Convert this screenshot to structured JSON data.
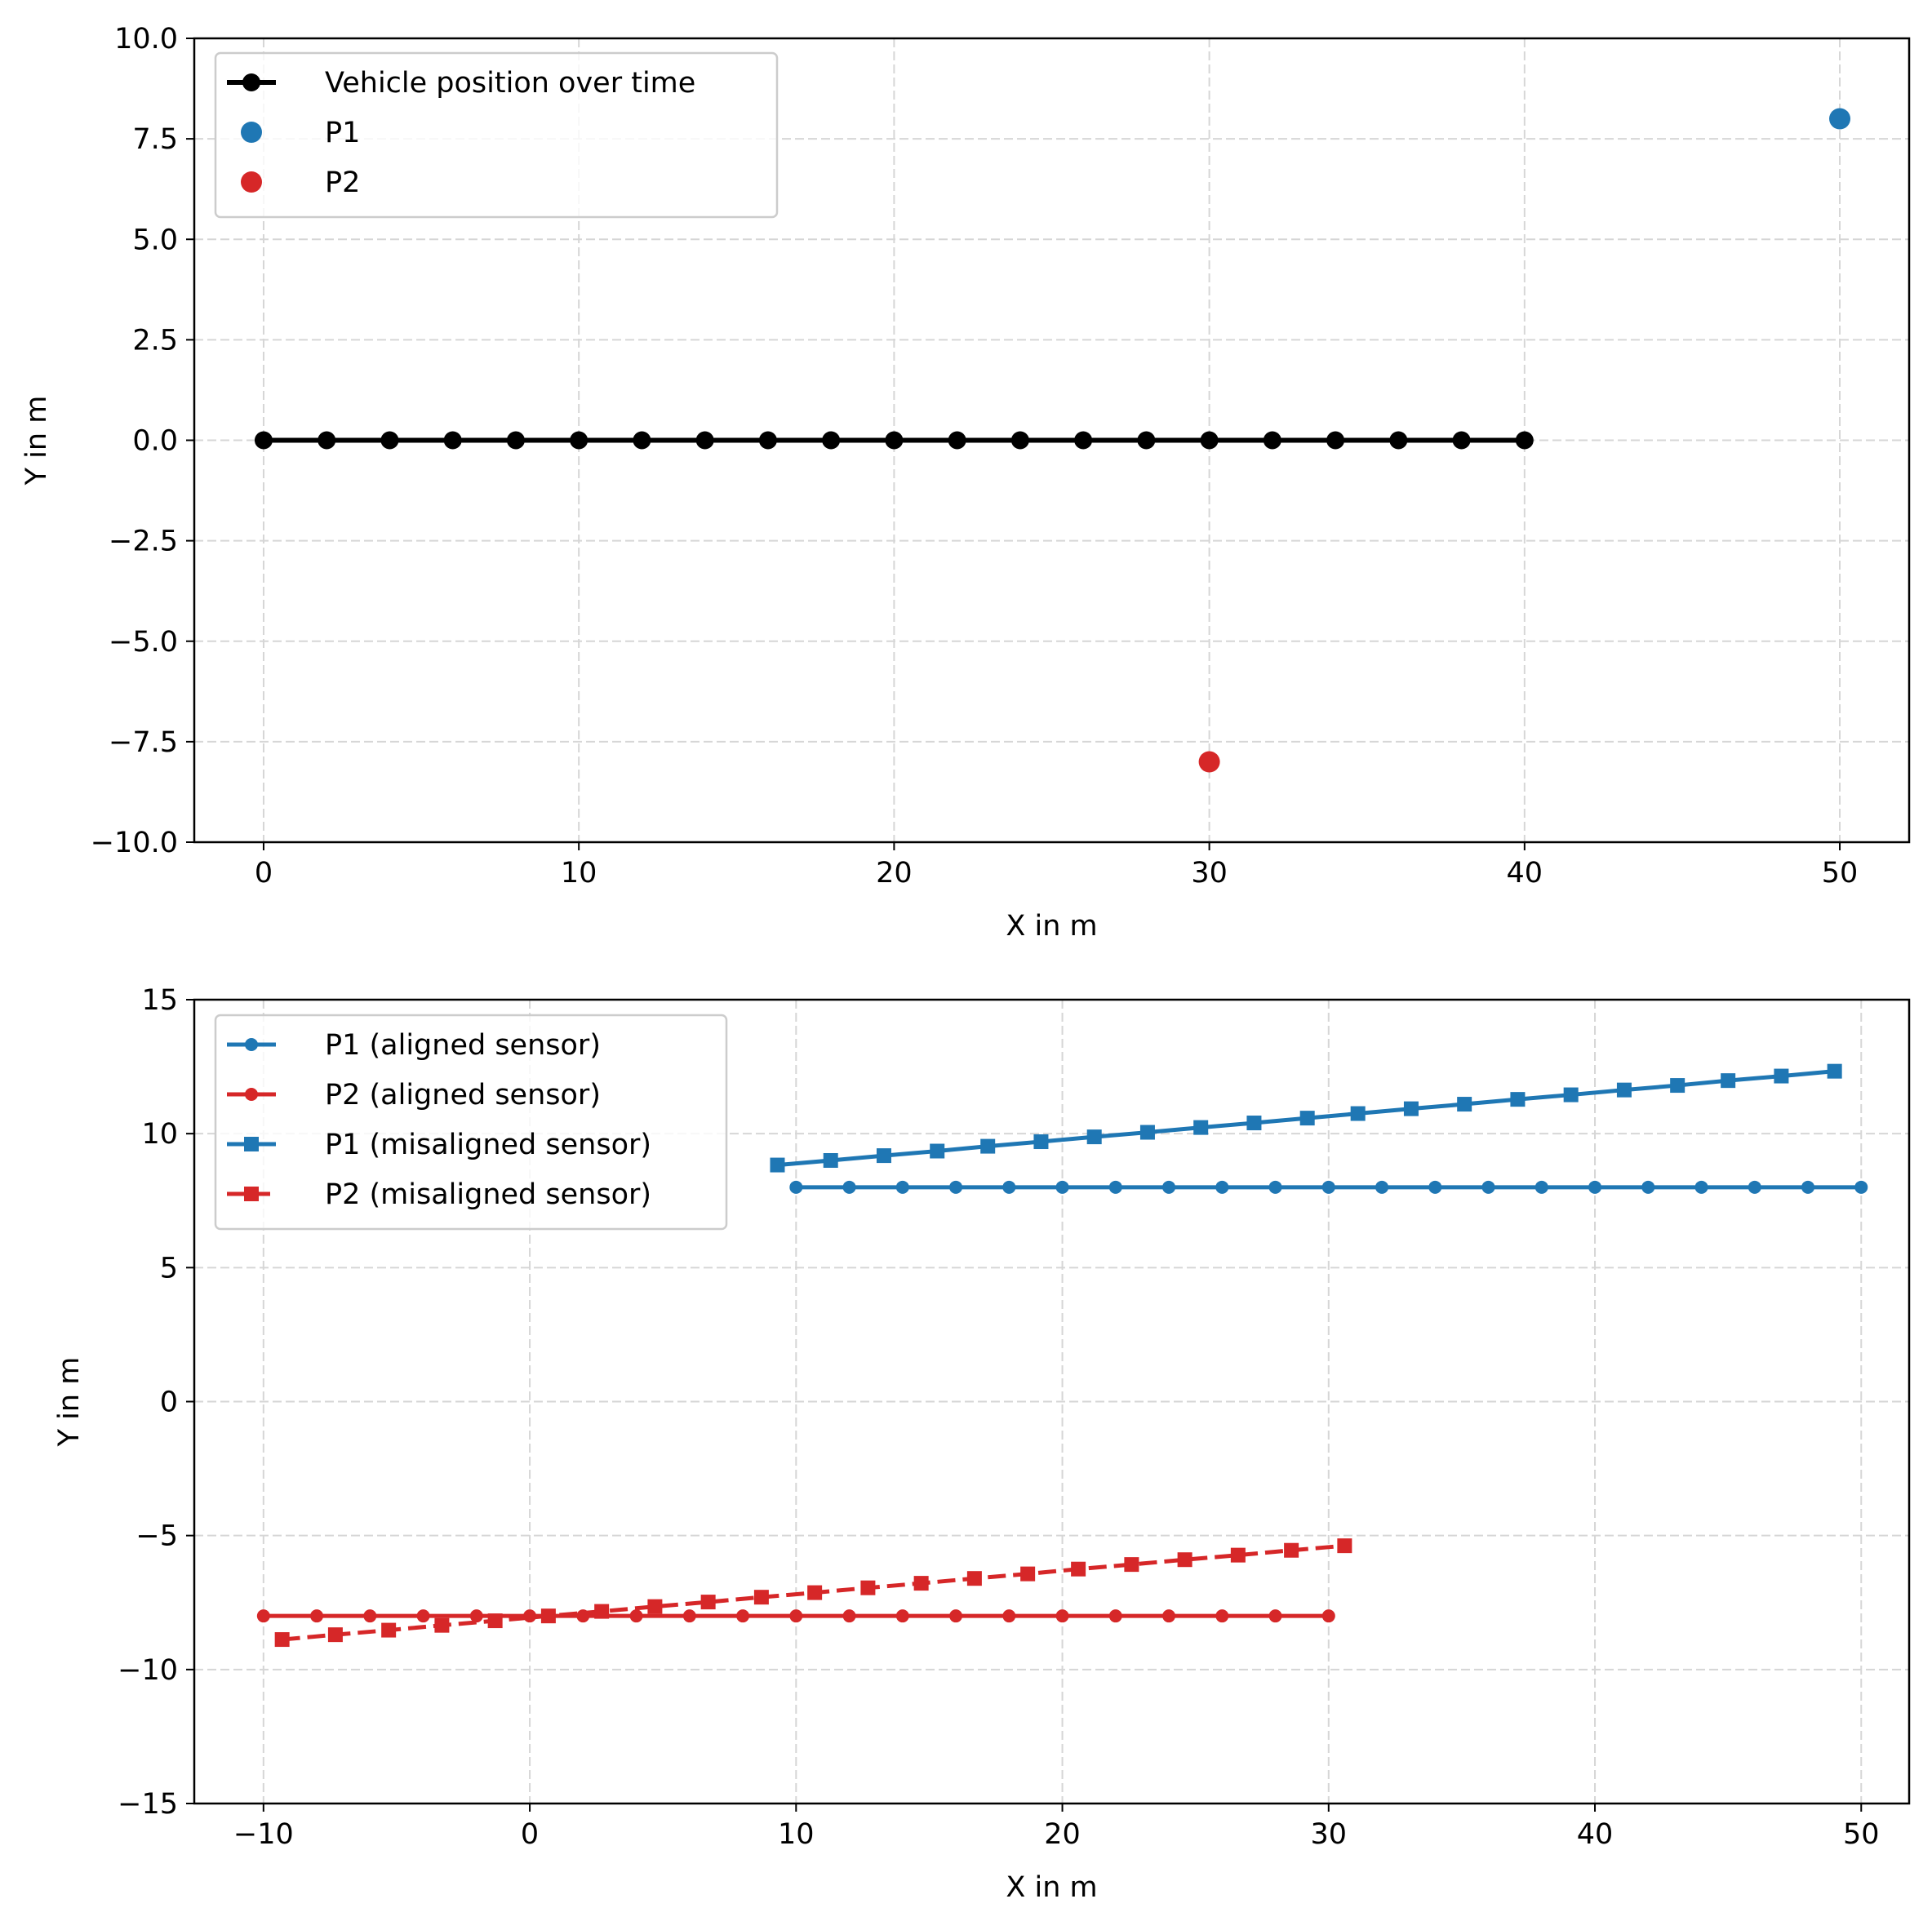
{
  "chart_data": [
    {
      "type": "scatter",
      "xlabel": "X in m",
      "ylabel": "Y in m",
      "xlim": [
        -2.2,
        52.2
      ],
      "ylim": [
        -10,
        10
      ],
      "xticks": [
        0,
        10,
        20,
        30,
        40,
        50
      ],
      "yticks": [
        -10,
        -7.5,
        -5,
        -2.5,
        0,
        2.5,
        5,
        7.5,
        10
      ],
      "xtick_labels": [
        "0",
        "10",
        "20",
        "30",
        "40",
        "50"
      ],
      "ytick_labels": [
        "−10.0",
        "−7.5",
        "−5.0",
        "−2.5",
        "0.0",
        "2.5",
        "5.0",
        "7.5",
        "10.0"
      ],
      "grid": true,
      "legend_position": "upper-left",
      "series": [
        {
          "name": "Vehicle position over time",
          "color": "#000000",
          "line": "solid",
          "marker": "circle",
          "marker_size": 11,
          "x": [
            0,
            2,
            4,
            6,
            8,
            10,
            12,
            14,
            16,
            18,
            20,
            22,
            24,
            26,
            28,
            30,
            32,
            34,
            36,
            38,
            40
          ],
          "y": [
            0,
            0,
            0,
            0,
            0,
            0,
            0,
            0,
            0,
            0,
            0,
            0,
            0,
            0,
            0,
            0,
            0,
            0,
            0,
            0,
            0
          ]
        },
        {
          "name": "P1",
          "color": "#1f77b4",
          "line": "none",
          "marker": "circle",
          "marker_size": 13,
          "x": [
            50
          ],
          "y": [
            8
          ]
        },
        {
          "name": "P2",
          "color": "#d62728",
          "line": "none",
          "marker": "circle",
          "marker_size": 13,
          "x": [
            30
          ],
          "y": [
            -8
          ]
        }
      ]
    },
    {
      "type": "line",
      "xlabel": "X in m",
      "ylabel": "Y in m",
      "xlim": [
        -12.6,
        51.8
      ],
      "ylim": [
        -15,
        15
      ],
      "xticks": [
        -10,
        0,
        10,
        20,
        30,
        40,
        50
      ],
      "yticks": [
        -15,
        -10,
        -5,
        0,
        5,
        10,
        15
      ],
      "xtick_labels": [
        "−10",
        "0",
        "10",
        "20",
        "30",
        "40",
        "50"
      ],
      "ytick_labels": [
        "−15",
        "−10",
        "−5",
        "0",
        "5",
        "10",
        "15"
      ],
      "grid": true,
      "legend_position": "upper-left",
      "series": [
        {
          "name": "P1 (aligned sensor)",
          "color": "#1f77b4",
          "line": "solid",
          "marker": "circle",
          "marker_size": 8,
          "x": [
            10,
            12,
            14,
            16,
            18,
            20,
            22,
            24,
            26,
            28,
            30,
            32,
            34,
            36,
            38,
            40,
            42,
            44,
            46,
            48,
            50
          ],
          "y": [
            8,
            8,
            8,
            8,
            8,
            8,
            8,
            8,
            8,
            8,
            8,
            8,
            8,
            8,
            8,
            8,
            8,
            8,
            8,
            8,
            8
          ]
        },
        {
          "name": "P2 (aligned sensor)",
          "color": "#d62728",
          "line": "solid",
          "marker": "circle",
          "marker_size": 8,
          "x": [
            -10,
            -8,
            -6,
            -4,
            -2,
            0,
            2,
            4,
            6,
            8,
            10,
            12,
            14,
            16,
            18,
            20,
            22,
            24,
            26,
            28,
            30
          ],
          "y": [
            -8,
            -8,
            -8,
            -8,
            -8,
            -8,
            -8,
            -8,
            -8,
            -8,
            -8,
            -8,
            -8,
            -8,
            -8,
            -8,
            -8,
            -8,
            -8,
            -8,
            -8
          ]
        },
        {
          "name": "P1 (misaligned sensor)",
          "color": "#1f77b4",
          "line": "solid",
          "marker": "square",
          "marker_size": 9,
          "x": [
            9.3,
            11.3,
            13.3,
            15.3,
            17.2,
            19.2,
            21.2,
            23.2,
            25.2,
            27.2,
            29.2,
            31.1,
            33.1,
            35.1,
            37.1,
            39.1,
            41.1,
            43.1,
            45.0,
            47.0,
            49.0
          ],
          "y": [
            8.83,
            9.0,
            9.18,
            9.35,
            9.53,
            9.7,
            9.88,
            10.05,
            10.23,
            10.4,
            10.58,
            10.75,
            10.93,
            11.1,
            11.28,
            11.45,
            11.63,
            11.8,
            11.98,
            12.15,
            12.33
          ]
        },
        {
          "name": "P2 (misaligned sensor)",
          "color": "#d62728",
          "line": "dashed",
          "marker": "square",
          "marker_size": 9,
          "x": [
            -9.3,
            -7.3,
            -5.3,
            -3.3,
            -1.3,
            0.7,
            2.7,
            4.7,
            6.7,
            8.7,
            10.7,
            12.7,
            14.7,
            16.7,
            18.7,
            20.6,
            22.6,
            24.6,
            26.6,
            28.6,
            30.6
          ],
          "y": [
            -8.88,
            -8.7,
            -8.53,
            -8.35,
            -8.18,
            -8.0,
            -7.83,
            -7.65,
            -7.48,
            -7.3,
            -7.13,
            -6.95,
            -6.78,
            -6.6,
            -6.43,
            -6.25,
            -6.08,
            -5.9,
            -5.73,
            -5.55,
            -5.38
          ]
        }
      ]
    }
  ]
}
